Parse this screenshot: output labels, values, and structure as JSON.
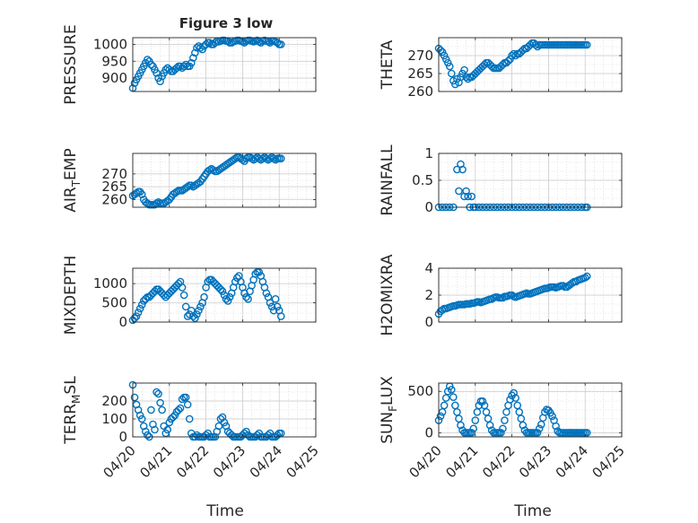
{
  "figure": {
    "title": "Figure 3 low"
  },
  "shared": {
    "xlabel": "Time",
    "xticks": [
      "04/20",
      "04/21",
      "04/22",
      "04/23",
      "04/24",
      "04/25"
    ],
    "marker_color": "#0072BD"
  },
  "chart_data": [
    {
      "type": "scatter",
      "ylabel": "PRESSURE",
      "xlim": [
        0,
        5
      ],
      "ylim": [
        860,
        1020
      ],
      "yticks": [
        900,
        950,
        1000
      ],
      "grid": true,
      "x": [
        0,
        0.05,
        0.1,
        0.15,
        0.2,
        0.25,
        0.3,
        0.35,
        0.4,
        0.45,
        0.5,
        0.55,
        0.6,
        0.65,
        0.7,
        0.75,
        0.8,
        0.85,
        0.9,
        0.95,
        1,
        1.05,
        1.1,
        1.15,
        1.2,
        1.25,
        1.3,
        1.35,
        1.4,
        1.45,
        1.5,
        1.55,
        1.6,
        1.65,
        1.7,
        1.75,
        1.8,
        1.85,
        1.9,
        1.95,
        2,
        2.05,
        2.1,
        2.15,
        2.2,
        2.25,
        2.3,
        2.35,
        2.4,
        2.45,
        2.5,
        2.55,
        2.6,
        2.65,
        2.7,
        2.75,
        2.8,
        2.85,
        2.9,
        2.95,
        3,
        3.05,
        3.1,
        3.15,
        3.2,
        3.25,
        3.3,
        3.35,
        3.4,
        3.45,
        3.5,
        3.55,
        3.6,
        3.65,
        3.7,
        3.75,
        3.8,
        3.85,
        3.9,
        3.95,
        4,
        4.05
      ],
      "y": [
        870,
        885,
        895,
        905,
        915,
        925,
        935,
        945,
        955,
        950,
        940,
        935,
        925,
        915,
        900,
        890,
        905,
        915,
        925,
        930,
        925,
        920,
        920,
        925,
        930,
        935,
        935,
        930,
        935,
        940,
        935,
        935,
        945,
        960,
        975,
        990,
        995,
        990,
        985,
        995,
        1000,
        1005,
        1005,
        1000,
        1000,
        1005,
        1010,
        1008,
        1010,
        1012,
        1012,
        1010,
        1010,
        1005,
        1005,
        1008,
        1010,
        1012,
        1012,
        1010,
        1008,
        1005,
        1010,
        1012,
        1012,
        1010,
        1008,
        1010,
        1012,
        1008,
        1005,
        1010,
        1012,
        1010,
        1008,
        1005,
        1010,
        1010,
        1008,
        1005,
        1000,
        1000
      ]
    },
    {
      "type": "scatter",
      "ylabel": "THETA",
      "xlim": [
        0,
        5
      ],
      "ylim": [
        260,
        275
      ],
      "yticks": [
        260,
        265,
        270
      ],
      "grid": true,
      "x": [
        0,
        0.05,
        0.1,
        0.15,
        0.2,
        0.25,
        0.3,
        0.35,
        0.4,
        0.45,
        0.5,
        0.55,
        0.6,
        0.65,
        0.7,
        0.75,
        0.8,
        0.85,
        0.9,
        0.95,
        1,
        1.05,
        1.1,
        1.15,
        1.2,
        1.25,
        1.3,
        1.35,
        1.4,
        1.45,
        1.5,
        1.55,
        1.6,
        1.65,
        1.7,
        1.75,
        1.8,
        1.85,
        1.9,
        1.95,
        2,
        2.05,
        2.1,
        2.15,
        2.2,
        2.25,
        2.3,
        2.35,
        2.4,
        2.45,
        2.5,
        2.55,
        2.6,
        2.65,
        2.7,
        2.75,
        2.8,
        2.85,
        2.9,
        2.95,
        3,
        3.05,
        3.1,
        3.15,
        3.2,
        3.25,
        3.3,
        3.35,
        3.4,
        3.45,
        3.5,
        3.55,
        3.6,
        3.65,
        3.7,
        3.75,
        3.8,
        3.85,
        3.9,
        3.95,
        4,
        4.05
      ],
      "y": [
        272,
        271.5,
        271,
        270,
        269,
        268,
        267,
        265,
        263,
        262,
        263.5,
        262.5,
        264,
        265,
        266,
        264,
        263.5,
        264,
        264,
        264.5,
        265,
        265.5,
        266,
        266.5,
        267,
        267.5,
        268,
        268,
        267.5,
        267,
        266.5,
        266.5,
        266.5,
        266.5,
        267,
        267.5,
        268,
        268,
        268.5,
        269,
        270,
        270.5,
        270,
        270.5,
        270.5,
        271,
        271.5,
        272,
        272,
        272.5,
        273,
        273.5,
        273.5,
        273,
        272.5,
        273,
        273,
        273,
        273,
        273,
        273,
        273,
        273,
        273,
        273,
        273,
        273,
        273,
        273,
        273,
        273,
        273,
        273,
        273,
        273,
        273,
        273,
        273,
        273,
        273,
        273,
        273
      ]
    },
    {
      "type": "scatter",
      "ylabel": "AIR_TEMP",
      "xlim": [
        0,
        5
      ],
      "ylim": [
        257,
        278
      ],
      "yticks": [
        260,
        265,
        270
      ],
      "grid": true,
      "x": [
        0,
        0.05,
        0.1,
        0.15,
        0.2,
        0.25,
        0.3,
        0.35,
        0.4,
        0.45,
        0.5,
        0.55,
        0.6,
        0.65,
        0.7,
        0.75,
        0.8,
        0.85,
        0.9,
        0.95,
        1,
        1.05,
        1.1,
        1.15,
        1.2,
        1.25,
        1.3,
        1.35,
        1.4,
        1.45,
        1.5,
        1.55,
        1.6,
        1.65,
        1.7,
        1.75,
        1.8,
        1.85,
        1.9,
        1.95,
        2,
        2.05,
        2.1,
        2.15,
        2.2,
        2.25,
        2.3,
        2.35,
        2.4,
        2.45,
        2.5,
        2.55,
        2.6,
        2.65,
        2.7,
        2.75,
        2.8,
        2.85,
        2.9,
        2.95,
        3,
        3.05,
        3.1,
        3.15,
        3.2,
        3.25,
        3.3,
        3.35,
        3.4,
        3.45,
        3.5,
        3.55,
        3.6,
        3.65,
        3.7,
        3.75,
        3.8,
        3.85,
        3.9,
        3.95,
        4,
        4.05
      ],
      "y": [
        261.5,
        262,
        262.5,
        263,
        263,
        262,
        260,
        259,
        258.5,
        258,
        258,
        258,
        258,
        258.5,
        259,
        258.5,
        258.5,
        258.5,
        259,
        259.5,
        260,
        261,
        262,
        262.5,
        263,
        263.5,
        263.5,
        263.5,
        264,
        264.5,
        265,
        265.5,
        265.5,
        265,
        265.5,
        266,
        266.5,
        267,
        268,
        269,
        270,
        271,
        271.5,
        272,
        271.5,
        271,
        271,
        271.5,
        272,
        272.5,
        273,
        273.5,
        274,
        274.5,
        275,
        275.5,
        276,
        276.5,
        276.5,
        276,
        275.5,
        275,
        276,
        276.5,
        276.5,
        276,
        275.5,
        276,
        276.5,
        276,
        275.5,
        276,
        276.5,
        276,
        275.5,
        276,
        276.5,
        276,
        275.5,
        276,
        276,
        276
      ]
    },
    {
      "type": "scatter",
      "ylabel": "RAINFALL",
      "xlim": [
        0,
        5
      ],
      "ylim": [
        0,
        1
      ],
      "yticks": [
        0,
        0.5,
        1
      ],
      "grid": true,
      "x": [
        0,
        0.1,
        0.2,
        0.3,
        0.4,
        0.5,
        0.55,
        0.6,
        0.65,
        0.7,
        0.75,
        0.8,
        0.85,
        0.9,
        0.95,
        1,
        1.1,
        1.2,
        1.3,
        1.4,
        1.5,
        1.6,
        1.7,
        1.8,
        1.9,
        2,
        2.1,
        2.2,
        2.3,
        2.4,
        2.5,
        2.6,
        2.7,
        2.8,
        2.9,
        3,
        3.1,
        3.2,
        3.3,
        3.4,
        3.5,
        3.6,
        3.7,
        3.8,
        3.9,
        4,
        4.05
      ],
      "y": [
        0,
        0,
        0,
        0,
        0,
        0.7,
        0.3,
        0.8,
        0.7,
        0.2,
        0.3,
        0.2,
        0,
        0.2,
        0,
        0,
        0,
        0,
        0,
        0,
        0,
        0,
        0,
        0,
        0,
        0,
        0,
        0,
        0,
        0,
        0,
        0,
        0,
        0,
        0,
        0,
        0,
        0,
        0,
        0,
        0,
        0,
        0,
        0,
        0,
        0,
        0
      ]
    },
    {
      "type": "scatter",
      "ylabel": "MIXDEPTH",
      "xlim": [
        0,
        5
      ],
      "ylim": [
        0,
        1400
      ],
      "yticks": [
        0,
        500,
        1000
      ],
      "grid": true,
      "x": [
        0,
        0.05,
        0.1,
        0.15,
        0.2,
        0.25,
        0.3,
        0.35,
        0.4,
        0.45,
        0.5,
        0.55,
        0.6,
        0.65,
        0.7,
        0.75,
        0.8,
        0.85,
        0.9,
        0.95,
        1,
        1.05,
        1.1,
        1.15,
        1.2,
        1.25,
        1.3,
        1.35,
        1.4,
        1.45,
        1.5,
        1.55,
        1.6,
        1.65,
        1.7,
        1.75,
        1.8,
        1.85,
        1.9,
        1.95,
        2,
        2.05,
        2.1,
        2.15,
        2.2,
        2.25,
        2.3,
        2.35,
        2.4,
        2.45,
        2.5,
        2.55,
        2.6,
        2.65,
        2.7,
        2.75,
        2.8,
        2.85,
        2.9,
        2.95,
        3,
        3.05,
        3.1,
        3.15,
        3.2,
        3.25,
        3.3,
        3.35,
        3.4,
        3.45,
        3.5,
        3.55,
        3.6,
        3.65,
        3.7,
        3.75,
        3.8,
        3.85,
        3.9,
        3.95,
        4,
        4.05
      ],
      "y": [
        50,
        100,
        150,
        250,
        350,
        450,
        550,
        600,
        650,
        650,
        700,
        750,
        800,
        850,
        850,
        800,
        750,
        700,
        650,
        700,
        750,
        800,
        850,
        900,
        950,
        1000,
        1050,
        900,
        700,
        400,
        150,
        200,
        300,
        150,
        100,
        200,
        300,
        400,
        500,
        650,
        900,
        1050,
        1100,
        1100,
        1050,
        1000,
        950,
        900,
        850,
        800,
        700,
        600,
        550,
        650,
        750,
        900,
        1050,
        1150,
        1200,
        1050,
        900,
        750,
        650,
        600,
        800,
        950,
        1100,
        1250,
        1300,
        1300,
        1200,
        1050,
        900,
        750,
        650,
        500,
        400,
        300,
        600,
        400,
        300,
        150
      ]
    },
    {
      "type": "scatter",
      "ylabel": "H2OMIXRA",
      "xlim": [
        0,
        5
      ],
      "ylim": [
        0,
        4
      ],
      "yticks": [
        0,
        2,
        4
      ],
      "grid": true,
      "x": [
        0,
        0.05,
        0.1,
        0.15,
        0.2,
        0.25,
        0.3,
        0.35,
        0.4,
        0.45,
        0.5,
        0.55,
        0.6,
        0.65,
        0.7,
        0.75,
        0.8,
        0.85,
        0.9,
        0.95,
        1,
        1.05,
        1.1,
        1.15,
        1.2,
        1.25,
        1.3,
        1.35,
        1.4,
        1.45,
        1.5,
        1.55,
        1.6,
        1.65,
        1.7,
        1.75,
        1.8,
        1.85,
        1.9,
        1.95,
        2,
        2.05,
        2.1,
        2.15,
        2.2,
        2.25,
        2.3,
        2.35,
        2.4,
        2.45,
        2.5,
        2.55,
        2.6,
        2.65,
        2.7,
        2.75,
        2.8,
        2.85,
        2.9,
        2.95,
        3,
        3.05,
        3.1,
        3.15,
        3.2,
        3.25,
        3.3,
        3.35,
        3.4,
        3.45,
        3.5,
        3.55,
        3.6,
        3.65,
        3.7,
        3.75,
        3.8,
        3.85,
        3.9,
        3.95,
        4,
        4.05
      ],
      "y": [
        0.6,
        0.8,
        0.9,
        1,
        1,
        1.05,
        1.1,
        1.15,
        1.2,
        1.2,
        1.25,
        1.3,
        1.3,
        1.3,
        1.3,
        1.35,
        1.35,
        1.35,
        1.4,
        1.4,
        1.45,
        1.5,
        1.5,
        1.45,
        1.5,
        1.55,
        1.6,
        1.65,
        1.7,
        1.7,
        1.8,
        1.85,
        1.85,
        1.8,
        1.8,
        1.8,
        1.9,
        1.9,
        1.95,
        2,
        2,
        1.9,
        1.85,
        1.9,
        1.95,
        2,
        2.05,
        2.1,
        2.15,
        2.1,
        2.1,
        2.15,
        2.2,
        2.25,
        2.3,
        2.35,
        2.4,
        2.45,
        2.5,
        2.5,
        2.55,
        2.6,
        2.6,
        2.6,
        2.55,
        2.6,
        2.65,
        2.7,
        2.7,
        2.6,
        2.6,
        2.7,
        2.8,
        2.9,
        3,
        3,
        3.1,
        3.15,
        3.2,
        3.25,
        3.3,
        3.4
      ]
    },
    {
      "type": "scatter",
      "ylabel": "TERR_MSL",
      "xlim": [
        0,
        5
      ],
      "ylim": [
        0,
        300
      ],
      "yticks": [
        0,
        100,
        200
      ],
      "grid": true,
      "x": [
        0,
        0.05,
        0.1,
        0.15,
        0.2,
        0.25,
        0.3,
        0.35,
        0.4,
        0.45,
        0.5,
        0.55,
        0.6,
        0.65,
        0.7,
        0.75,
        0.8,
        0.85,
        0.9,
        0.95,
        1,
        1.05,
        1.1,
        1.15,
        1.2,
        1.25,
        1.3,
        1.35,
        1.4,
        1.45,
        1.5,
        1.55,
        1.6,
        1.65,
        1.7,
        1.75,
        1.8,
        1.85,
        1.9,
        1.95,
        2,
        2.05,
        2.1,
        2.15,
        2.2,
        2.25,
        2.3,
        2.35,
        2.4,
        2.45,
        2.5,
        2.55,
        2.6,
        2.65,
        2.7,
        2.75,
        2.8,
        2.85,
        2.9,
        2.95,
        3,
        3.05,
        3.1,
        3.15,
        3.2,
        3.25,
        3.3,
        3.35,
        3.4,
        3.45,
        3.5,
        3.55,
        3.6,
        3.65,
        3.7,
        3.75,
        3.8,
        3.85,
        3.9,
        3.95,
        4,
        4.05
      ],
      "y": [
        290,
        220,
        180,
        150,
        120,
        100,
        60,
        30,
        10,
        0,
        150,
        70,
        40,
        250,
        240,
        190,
        150,
        60,
        20,
        40,
        80,
        100,
        110,
        120,
        140,
        150,
        160,
        210,
        220,
        220,
        180,
        100,
        20,
        0,
        0,
        10,
        0,
        0,
        0,
        0,
        10,
        20,
        0,
        0,
        0,
        0,
        30,
        60,
        100,
        110,
        80,
        60,
        30,
        20,
        10,
        0,
        0,
        0,
        0,
        0,
        10,
        20,
        30,
        10,
        0,
        0,
        0,
        0,
        10,
        20,
        0,
        0,
        0,
        0,
        10,
        20,
        0,
        0,
        0,
        10,
        20,
        20
      ]
    },
    {
      "type": "scatter",
      "ylabel": "SUN_FLUX",
      "xlim": [
        0,
        5
      ],
      "ylim": [
        -50,
        600
      ],
      "yticks": [
        0,
        500
      ],
      "grid": true,
      "x": [
        0,
        0.05,
        0.1,
        0.15,
        0.2,
        0.25,
        0.3,
        0.35,
        0.4,
        0.45,
        0.5,
        0.55,
        0.6,
        0.65,
        0.7,
        0.75,
        0.8,
        0.85,
        0.9,
        0.95,
        1,
        1.05,
        1.1,
        1.15,
        1.2,
        1.25,
        1.3,
        1.35,
        1.4,
        1.45,
        1.5,
        1.55,
        1.6,
        1.65,
        1.7,
        1.75,
        1.8,
        1.85,
        1.9,
        1.95,
        2,
        2.05,
        2.1,
        2.15,
        2.2,
        2.25,
        2.3,
        2.35,
        2.4,
        2.45,
        2.5,
        2.55,
        2.6,
        2.65,
        2.7,
        2.75,
        2.8,
        2.85,
        2.9,
        2.95,
        3,
        3.05,
        3.1,
        3.15,
        3.2,
        3.25,
        3.3,
        3.35,
        3.4,
        3.45,
        3.5,
        3.55,
        3.6,
        3.65,
        3.7,
        3.75,
        3.8,
        3.85,
        3.9,
        3.95,
        4,
        4.05
      ],
      "y": [
        150,
        200,
        250,
        330,
        420,
        500,
        560,
        520,
        430,
        330,
        250,
        170,
        90,
        30,
        0,
        0,
        0,
        0,
        0,
        50,
        150,
        250,
        330,
        380,
        380,
        330,
        250,
        170,
        90,
        30,
        0,
        0,
        0,
        0,
        0,
        50,
        150,
        250,
        330,
        400,
        450,
        480,
        420,
        330,
        250,
        170,
        90,
        30,
        0,
        0,
        0,
        0,
        0,
        0,
        0,
        50,
        100,
        180,
        250,
        280,
        270,
        240,
        200,
        150,
        80,
        20,
        0,
        0,
        0,
        0,
        0,
        0,
        0,
        0,
        0,
        0,
        0,
        0,
        0,
        0,
        0,
        0
      ]
    }
  ]
}
